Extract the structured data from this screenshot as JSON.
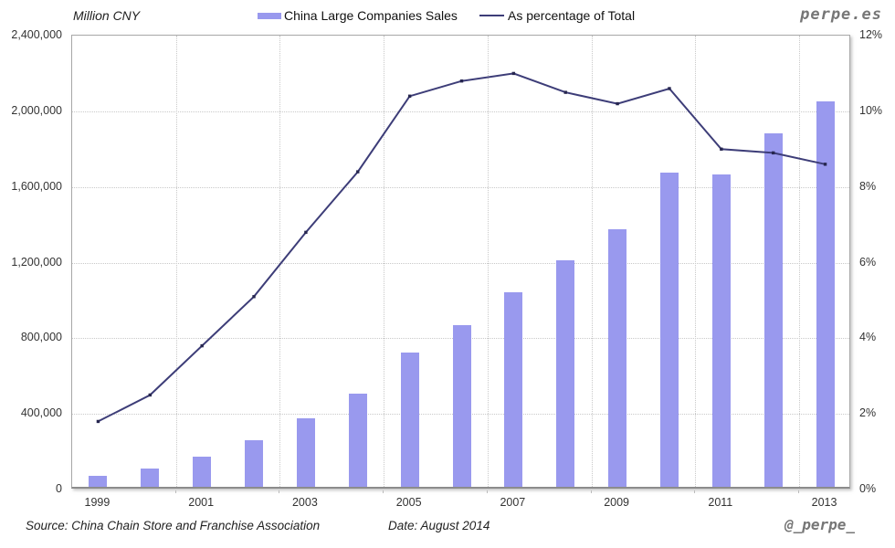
{
  "header": {
    "y_axis_title": "Million CNY",
    "brand": "perpe.es"
  },
  "legend": {
    "bar_label": "China Large Companies Sales",
    "line_label": "As percentage of Total"
  },
  "footer": {
    "source": "Source: China Chain Store and Franchise Association",
    "date": "Date: August 2014",
    "handle": "@_perpe_"
  },
  "colors": {
    "bar_fill": "#9999ee",
    "line_stroke": "#3d3d78",
    "marker_fill": "#26264f",
    "grid": "#c9c9c9",
    "brand_gray": "#767676"
  },
  "chart_data": {
    "type": "bar",
    "subtype": "bar+line combo, dual axis",
    "categories": [
      1999,
      2000,
      2001,
      2002,
      2003,
      2004,
      2005,
      2006,
      2007,
      2008,
      2009,
      2010,
      2011,
      2012,
      2013
    ],
    "series": [
      {
        "name": "China Large Companies Sales",
        "type": "bar",
        "axis": "left",
        "unit": "Million CNY",
        "values": [
          60000,
          95000,
          160000,
          245000,
          360000,
          495000,
          710000,
          855000,
          1030000,
          1200000,
          1360000,
          1660000,
          1650000,
          1870000,
          2040000
        ]
      },
      {
        "name": "As percentage of Total",
        "type": "line",
        "axis": "right",
        "unit": "%",
        "values": [
          1.8,
          2.5,
          3.8,
          5.1,
          6.8,
          8.4,
          10.4,
          10.8,
          11.0,
          10.5,
          10.2,
          10.6,
          9.0,
          8.9,
          8.6
        ]
      }
    ],
    "left_axis": {
      "title": "Million CNY",
      "min": 0,
      "max": 2400000,
      "step": 400000,
      "tick_labels": [
        "2,400,000",
        "2,000,000",
        "1,600,000",
        "1,200,000",
        "800,000",
        "400,000",
        "0"
      ]
    },
    "right_axis": {
      "min": 0,
      "max": 12,
      "step": 2,
      "tick_labels": [
        "12%",
        "10%",
        "8%",
        "6%",
        "4%",
        "2%",
        "0%"
      ]
    },
    "x_tick_labels": [
      "1999",
      "2001",
      "2003",
      "2005",
      "2007",
      "2009",
      "2011",
      "2013"
    ],
    "grid": "dotted, horizontal at each left-axis step, vertical every 2 years",
    "legend_position": "top center",
    "source_note": "Source: China Chain Store and Franchise Association",
    "date_note": "Date: August 2014"
  }
}
